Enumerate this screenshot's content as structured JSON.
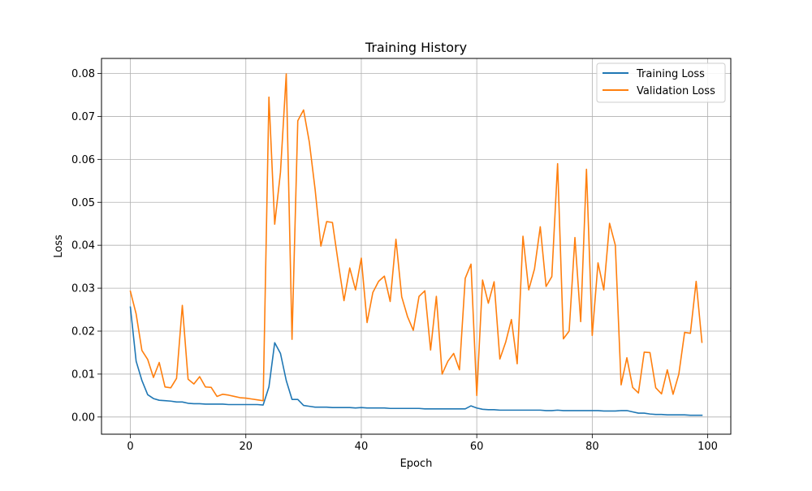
{
  "chart_data": {
    "type": "line",
    "title": "Training History",
    "xlabel": "Epoch",
    "ylabel": "Loss",
    "xlim": [
      -5,
      104
    ],
    "ylim": [
      -0.004,
      0.0835
    ],
    "xticks": [
      0,
      20,
      40,
      60,
      80,
      100
    ],
    "xtick_labels": [
      "0",
      "20",
      "40",
      "60",
      "80",
      "100"
    ],
    "yticks": [
      0.0,
      0.01,
      0.02,
      0.03,
      0.04,
      0.05,
      0.06,
      0.07,
      0.08
    ],
    "ytick_labels": [
      "0.00",
      "0.01",
      "0.02",
      "0.03",
      "0.04",
      "0.05",
      "0.06",
      "0.07",
      "0.08"
    ],
    "grid": true,
    "legend_position": "top-right",
    "series": [
      {
        "name": "Training Loss",
        "color": "#1f77b4",
        "values": [
          0.0256,
          0.013,
          0.0085,
          0.0052,
          0.0043,
          0.0039,
          0.0038,
          0.0037,
          0.0035,
          0.0035,
          0.0032,
          0.0031,
          0.0031,
          0.003,
          0.003,
          0.003,
          0.003,
          0.0029,
          0.0029,
          0.0029,
          0.0029,
          0.0029,
          0.0029,
          0.0028,
          0.007,
          0.0173,
          0.0148,
          0.0085,
          0.0041,
          0.0041,
          0.0027,
          0.0025,
          0.0023,
          0.0023,
          0.0023,
          0.0022,
          0.0022,
          0.0022,
          0.0022,
          0.0021,
          0.0022,
          0.0021,
          0.0021,
          0.0021,
          0.0021,
          0.002,
          0.002,
          0.002,
          0.002,
          0.002,
          0.002,
          0.0019,
          0.0019,
          0.0019,
          0.0019,
          0.0019,
          0.0019,
          0.0019,
          0.0019,
          0.0026,
          0.0021,
          0.0018,
          0.0017,
          0.0017,
          0.0016,
          0.0016,
          0.0016,
          0.0016,
          0.0016,
          0.0016,
          0.0016,
          0.0016,
          0.0015,
          0.0015,
          0.0016,
          0.0015,
          0.0015,
          0.0015,
          0.0015,
          0.0015,
          0.0015,
          0.0015,
          0.0014,
          0.0014,
          0.0014,
          0.0015,
          0.0015,
          0.0012,
          0.0009,
          0.0009,
          0.0007,
          0.0006,
          0.0006,
          0.0005,
          0.0005,
          0.0005,
          0.0005,
          0.0004,
          0.0004,
          0.0004
        ]
      },
      {
        "name": "Validation Loss",
        "color": "#ff7f0e",
        "values": [
          0.0293,
          0.024,
          0.0155,
          0.0134,
          0.0092,
          0.0127,
          0.007,
          0.0068,
          0.009,
          0.026,
          0.0088,
          0.0077,
          0.0094,
          0.007,
          0.0069,
          0.0048,
          0.0053,
          0.0051,
          0.0048,
          0.0045,
          0.0044,
          0.0042,
          0.004,
          0.0038,
          0.0745,
          0.0449,
          0.057,
          0.0799,
          0.0181,
          0.069,
          0.0715,
          0.064,
          0.053,
          0.0398,
          0.0455,
          0.0453,
          0.036,
          0.0271,
          0.0347,
          0.0296,
          0.037,
          0.022,
          0.029,
          0.0316,
          0.0328,
          0.0269,
          0.0414,
          0.028,
          0.0234,
          0.0202,
          0.0281,
          0.0294,
          0.0156,
          0.0281,
          0.01,
          0.013,
          0.0148,
          0.011,
          0.0323,
          0.0356,
          0.005,
          0.0319,
          0.0265,
          0.0315,
          0.0135,
          0.0174,
          0.0227,
          0.0124,
          0.0421,
          0.0296,
          0.0345,
          0.0443,
          0.0304,
          0.0327,
          0.059,
          0.0182,
          0.02,
          0.0418,
          0.0222,
          0.0577,
          0.019,
          0.0359,
          0.0296,
          0.0451,
          0.04,
          0.0075,
          0.0138,
          0.0069,
          0.0056,
          0.0151,
          0.015,
          0.0068,
          0.0054,
          0.011,
          0.0053,
          0.01,
          0.0197,
          0.0195,
          0.0316,
          0.0174
        ]
      }
    ]
  }
}
